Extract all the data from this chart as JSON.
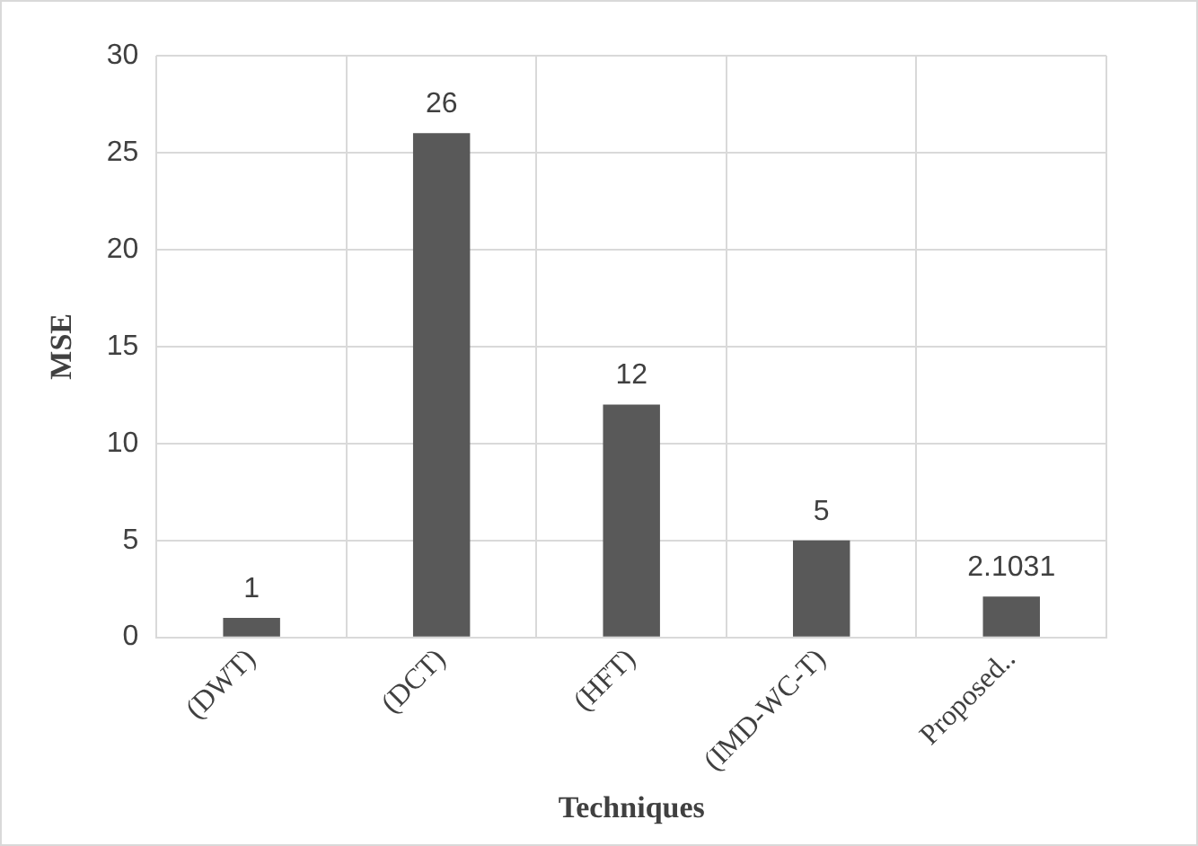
{
  "chart_data": {
    "type": "bar",
    "xlabel": "Techniques",
    "ylabel": "MSE",
    "categories": [
      "(DWT)",
      "(DCT)",
      "(HFT)",
      "(IMD-WC-T)",
      "Proposed.."
    ],
    "values": [
      1,
      26,
      12,
      5,
      2.1031
    ],
    "color": "#595959",
    "ylim": [
      0,
      30
    ],
    "yticks": [
      0,
      5,
      10,
      15,
      20,
      25,
      30
    ],
    "grid": true,
    "data_labels": true,
    "legend": false
  }
}
